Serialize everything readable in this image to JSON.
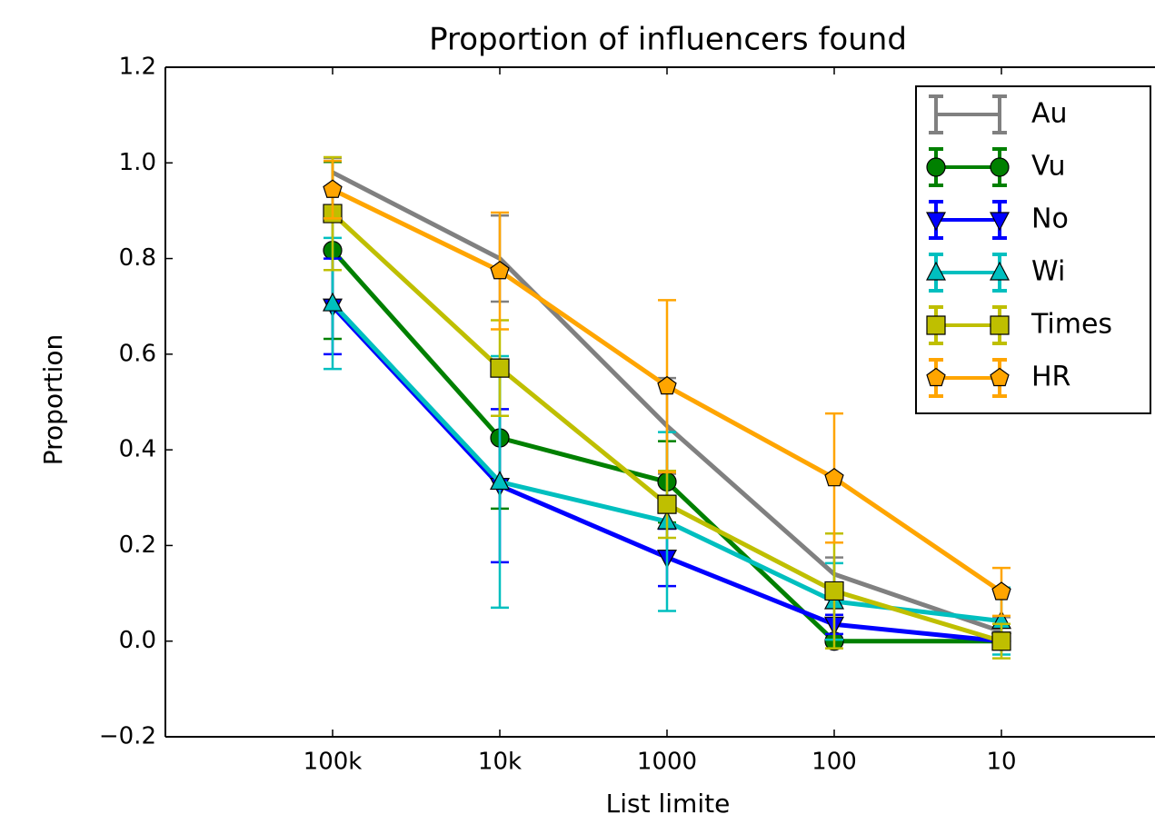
{
  "chart_data": {
    "type": "line",
    "title": "Proportion of influencers found",
    "x_label": "List limite",
    "y_label": "Proportion",
    "categories": [
      "100k",
      "10k",
      "1000",
      "100",
      "10"
    ],
    "ylim": [
      -0.2,
      1.2
    ],
    "yticks": [
      {
        "value": -0.2,
        "label": "−0.2"
      },
      {
        "value": 0,
        "label": "0.0"
      },
      0.2,
      0.4,
      0.6,
      0.8,
      {
        "value": 1,
        "label": "1.0"
      },
      1.2
    ],
    "legend": "upper right",
    "series": [
      {
        "name": "Au",
        "color": "#808080",
        "marker": "none",
        "values": [
          0.98,
          0.8,
          0.45,
          0.14,
          0.02
        ],
        "errors": [
          0.03,
          0.09,
          0.1,
          0.035,
          0.03
        ]
      },
      {
        "name": "Vu",
        "color": "#008000",
        "marker": "circle",
        "values": [
          0.817,
          0.425,
          0.333,
          0,
          0
        ],
        "errors": [
          0.185,
          0.148,
          0.085,
          0,
          0
        ]
      },
      {
        "name": "No",
        "color": "#0000ff",
        "marker": "triangle-down",
        "values": [
          0.7,
          0.325,
          0.175,
          0.035,
          0
        ],
        "errors": [
          0.1,
          0.16,
          0.06,
          0.02,
          0
        ]
      },
      {
        "name": "Wi",
        "color": "#00bfbf",
        "marker": "triangle-up",
        "values": [
          0.706,
          0.333,
          0.25,
          0.083,
          0.042
        ],
        "errors": [
          0.137,
          0.263,
          0.187,
          0.08,
          0.07
        ]
      },
      {
        "name": "Times",
        "color": "#bfbf00",
        "marker": "square",
        "values": [
          0.894,
          0.571,
          0.286,
          0.105,
          0
        ],
        "errors": [
          0.118,
          0.1,
          0.07,
          0.12,
          0.036
        ]
      },
      {
        "name": "HR",
        "color": "#ffa500",
        "marker": "pentagon",
        "values": [
          0.944,
          0.774,
          0.533,
          0.341,
          0.103
        ],
        "errors": [
          0.06,
          0.122,
          0.18,
          0.135,
          0.05
        ]
      }
    ]
  }
}
